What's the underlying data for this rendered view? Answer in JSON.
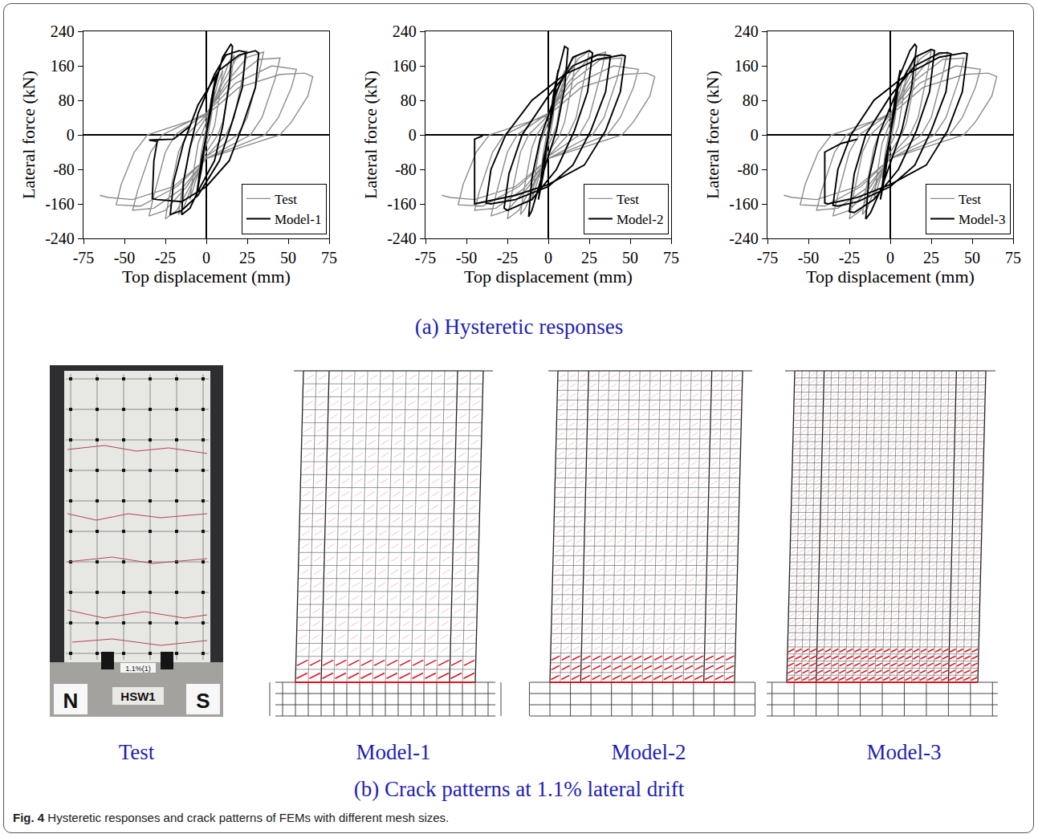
{
  "chart_data": [
    {
      "type": "line",
      "xlabel": "Top displacement (mm)",
      "ylabel": "Lateral force (kN)",
      "xlim": [
        -75,
        75
      ],
      "ylim": [
        -240,
        240
      ],
      "xticks": [
        -75,
        -50,
        -25,
        0,
        25,
        50,
        75
      ],
      "yticks": [
        -240,
        -160,
        -80,
        0,
        80,
        160,
        240
      ],
      "grid": false,
      "legend": "bottom right",
      "series": [
        {
          "name": "Test",
          "color": "#8c8c8c",
          "x": [
            0,
            2,
            5,
            3,
            1,
            -2,
            -5,
            -3,
            -1,
            3,
            7,
            10,
            8,
            5,
            3,
            -2,
            -6,
            -10,
            -8,
            -5,
            -3,
            0,
            8,
            14,
            17,
            15,
            10,
            7,
            0,
            -8,
            -14,
            -17,
            -15,
            -10,
            -7,
            0,
            10,
            18,
            25,
            23,
            17,
            12,
            0,
            -10,
            -18,
            -25,
            -23,
            -17,
            -12,
            0,
            12,
            25,
            35,
            32,
            25,
            19,
            0,
            -12,
            -25,
            -35,
            -32,
            -25,
            -19,
            0,
            15,
            32,
            45,
            42,
            34,
            27,
            0,
            -15,
            -32,
            -45,
            -42,
            -34,
            -27,
            0,
            18,
            40,
            55,
            52,
            44,
            36,
            0,
            -18,
            -40,
            -55,
            -52,
            -44,
            -36,
            0,
            20,
            45,
            60,
            65,
            62,
            52,
            45,
            0,
            -20,
            -45,
            -60,
            -65
          ],
          "values": [
            0,
            50,
            100,
            40,
            0,
            -50,
            -100,
            -40,
            0,
            60,
            120,
            150,
            90,
            20,
            0,
            -40,
            -100,
            -150,
            -90,
            -20,
            0,
            30,
            110,
            170,
            185,
            130,
            30,
            0,
            -40,
            -110,
            -170,
            -185,
            -130,
            -30,
            0,
            40,
            120,
            175,
            195,
            150,
            40,
            0,
            -50,
            -120,
            -175,
            -195,
            -150,
            -40,
            0,
            45,
            120,
            180,
            192,
            140,
            40,
            0,
            -50,
            -120,
            -175,
            -188,
            -140,
            -40,
            0,
            50,
            125,
            175,
            178,
            130,
            40,
            0,
            -55,
            -125,
            -170,
            -175,
            -130,
            -40,
            0,
            50,
            120,
            160,
            152,
            110,
            40,
            0,
            -55,
            -120,
            -165,
            -162,
            -115,
            -40,
            0,
            45,
            110,
            140,
            143,
            135,
            90,
            30,
            0,
            -55,
            -120,
            -150,
            -145,
            -140
          ]
        },
        {
          "name": "Model-1",
          "color": "#000000",
          "x": [
            0,
            3,
            6,
            3,
            0,
            -3,
            -6,
            -3,
            0,
            5,
            10,
            15,
            16,
            14,
            10,
            5,
            -5,
            -10,
            -15,
            -14,
            -10,
            -5,
            5,
            12,
            20,
            24,
            22,
            15,
            8,
            -5,
            -15,
            -22,
            -20,
            -14,
            -5,
            8,
            20,
            30,
            32,
            30,
            22,
            14,
            0,
            -15,
            -30,
            -33,
            -32,
            -30,
            -35,
            -20,
            -10
          ],
          "values": [
            0,
            80,
            140,
            60,
            0,
            -80,
            -140,
            -60,
            0,
            110,
            180,
            210,
            205,
            120,
            20,
            -60,
            -130,
            -170,
            -185,
            -110,
            -30,
            50,
            140,
            185,
            195,
            192,
            110,
            20,
            -60,
            -140,
            -175,
            -185,
            -110,
            -20,
            70,
            150,
            185,
            195,
            190,
            110,
            20,
            -60,
            -120,
            -155,
            -150,
            -148,
            -60,
            -15,
            -12,
            -10,
            20
          ]
        }
      ]
    },
    {
      "type": "line",
      "xlabel": "Top displacement (mm)",
      "ylabel": "Lateral force (kN)",
      "xlim": [
        -75,
        75
      ],
      "ylim": [
        -240,
        240
      ],
      "xticks": [
        -75,
        -50,
        -25,
        0,
        25,
        50,
        75
      ],
      "yticks": [
        -240,
        -160,
        -80,
        0,
        80,
        160,
        240
      ],
      "grid": false,
      "legend": "bottom right",
      "series": [
        {
          "name": "Test",
          "color": "#8c8c8c",
          "x": [
            0,
            2,
            5,
            3,
            1,
            -2,
            -5,
            -3,
            -1,
            3,
            7,
            10,
            8,
            5,
            3,
            -2,
            -6,
            -10,
            -8,
            -5,
            -3,
            0,
            8,
            14,
            17,
            15,
            10,
            7,
            0,
            -8,
            -14,
            -17,
            -15,
            -10,
            -7,
            0,
            10,
            18,
            25,
            23,
            17,
            12,
            0,
            -10,
            -18,
            -25,
            -23,
            -17,
            -12,
            0,
            12,
            25,
            35,
            32,
            25,
            19,
            0,
            -12,
            -25,
            -35,
            -32,
            -25,
            -19,
            0,
            15,
            32,
            45,
            42,
            34,
            27,
            0,
            -15,
            -32,
            -45,
            -42,
            -34,
            -27,
            0,
            18,
            40,
            55,
            52,
            44,
            36,
            0,
            -18,
            -40,
            -55,
            -52,
            -44,
            -36,
            0,
            20,
            45,
            60,
            65,
            62,
            52,
            45,
            0,
            -20,
            -45,
            -60,
            -65
          ],
          "values": [
            0,
            50,
            100,
            40,
            0,
            -50,
            -100,
            -40,
            0,
            60,
            120,
            150,
            90,
            20,
            0,
            -40,
            -100,
            -150,
            -90,
            -20,
            0,
            30,
            110,
            170,
            185,
            130,
            30,
            0,
            -40,
            -110,
            -170,
            -185,
            -130,
            -30,
            0,
            40,
            120,
            175,
            195,
            150,
            40,
            0,
            -50,
            -120,
            -175,
            -195,
            -150,
            -40,
            0,
            45,
            120,
            180,
            192,
            140,
            40,
            0,
            -50,
            -120,
            -175,
            -188,
            -140,
            -40,
            0,
            50,
            125,
            175,
            178,
            130,
            40,
            0,
            -55,
            -125,
            -170,
            -175,
            -130,
            -40,
            0,
            50,
            120,
            160,
            152,
            110,
            40,
            0,
            -55,
            -120,
            -165,
            -162,
            -115,
            -40,
            0,
            45,
            110,
            140,
            143,
            135,
            90,
            30,
            0,
            -55,
            -120,
            -150,
            -145,
            -140
          ]
        },
        {
          "name": "Model-2",
          "color": "#000000",
          "x": [
            0,
            3,
            6,
            3,
            0,
            -3,
            -6,
            -3,
            0,
            5,
            10,
            12,
            10,
            5,
            -5,
            -10,
            -12,
            -10,
            -5,
            5,
            15,
            25,
            27,
            24,
            16,
            5,
            -10,
            -25,
            -27,
            -24,
            -16,
            0,
            15,
            30,
            35,
            38,
            35,
            26,
            15,
            0,
            -20,
            -35,
            -38,
            -35,
            -26,
            -10,
            10,
            30,
            45,
            47,
            44,
            35,
            22,
            0,
            -20,
            -40,
            -45,
            -45,
            -40
          ],
          "values": [
            0,
            90,
            150,
            60,
            0,
            -90,
            -150,
            -60,
            0,
            130,
            205,
            200,
            110,
            10,
            -110,
            -175,
            -190,
            -100,
            -10,
            100,
            180,
            195,
            190,
            100,
            10,
            -80,
            -150,
            -175,
            -170,
            -90,
            0,
            90,
            160,
            185,
            185,
            183,
            100,
            10,
            -70,
            -120,
            -150,
            -160,
            -158,
            -80,
            0,
            80,
            140,
            175,
            185,
            183,
            100,
            10,
            -70,
            -115,
            -140,
            -155,
            -160,
            -10,
            -2
          ]
        }
      ]
    },
    {
      "type": "line",
      "xlabel": "Top displacement (mm)",
      "ylabel": "Lateral force (kN)",
      "xlim": [
        -75,
        75
      ],
      "ylim": [
        -240,
        240
      ],
      "xticks": [
        -75,
        -50,
        -25,
        0,
        25,
        50,
        75
      ],
      "yticks": [
        -240,
        -160,
        -80,
        0,
        80,
        160,
        240
      ],
      "grid": false,
      "legend": "bottom right",
      "series": [
        {
          "name": "Test",
          "color": "#8c8c8c",
          "x": [
            0,
            2,
            5,
            3,
            1,
            -2,
            -5,
            -3,
            -1,
            3,
            7,
            10,
            8,
            5,
            3,
            -2,
            -6,
            -10,
            -8,
            -5,
            -3,
            0,
            8,
            14,
            17,
            15,
            10,
            7,
            0,
            -8,
            -14,
            -17,
            -15,
            -10,
            -7,
            0,
            10,
            18,
            25,
            23,
            17,
            12,
            0,
            -10,
            -18,
            -25,
            -23,
            -17,
            -12,
            0,
            12,
            25,
            35,
            32,
            25,
            19,
            0,
            -12,
            -25,
            -35,
            -32,
            -25,
            -19,
            0,
            15,
            32,
            45,
            42,
            34,
            27,
            0,
            -15,
            -32,
            -45,
            -42,
            -34,
            -27,
            0,
            18,
            40,
            55,
            52,
            44,
            36,
            0,
            -18,
            -40,
            -55,
            -52,
            -44,
            -36,
            0,
            20,
            45,
            60,
            65,
            62,
            52,
            45,
            0,
            -20,
            -45,
            -60,
            -65
          ],
          "values": [
            0,
            50,
            100,
            40,
            0,
            -50,
            -100,
            -40,
            0,
            60,
            120,
            150,
            90,
            20,
            0,
            -40,
            -100,
            -150,
            -90,
            -20,
            0,
            30,
            110,
            170,
            185,
            130,
            30,
            0,
            -40,
            -110,
            -170,
            -185,
            -130,
            -30,
            0,
            40,
            120,
            175,
            195,
            150,
            40,
            0,
            -50,
            -120,
            -175,
            -195,
            -150,
            -40,
            0,
            45,
            120,
            180,
            192,
            140,
            40,
            0,
            -50,
            -120,
            -175,
            -188,
            -140,
            -40,
            0,
            50,
            125,
            175,
            178,
            130,
            40,
            0,
            -55,
            -125,
            -170,
            -175,
            -130,
            -40,
            0,
            50,
            120,
            160,
            152,
            110,
            40,
            0,
            -55,
            -120,
            -165,
            -162,
            -115,
            -40,
            0,
            45,
            110,
            140,
            143,
            135,
            90,
            30,
            0,
            -55,
            -120,
            -150,
            -145,
            -140
          ]
        },
        {
          "name": "Model-3",
          "color": "#000000",
          "x": [
            0,
            3,
            6,
            3,
            0,
            -3,
            -6,
            -3,
            0,
            5,
            12,
            15,
            16,
            13,
            7,
            -5,
            -12,
            -15,
            -13,
            -7,
            5,
            15,
            25,
            27,
            24,
            16,
            5,
            -10,
            -22,
            -25,
            -22,
            -15,
            0,
            15,
            30,
            35,
            37,
            34,
            25,
            15,
            0,
            -20,
            -32,
            -35,
            -32,
            -24,
            -10,
            10,
            30,
            45,
            47,
            44,
            35,
            22,
            0,
            -20,
            -38,
            -40,
            -40,
            -30,
            -20
          ],
          "values": [
            0,
            90,
            150,
            60,
            0,
            -90,
            -150,
            -60,
            0,
            130,
            195,
            210,
            205,
            110,
            10,
            -120,
            -180,
            -195,
            -100,
            0,
            110,
            180,
            198,
            195,
            100,
            10,
            -80,
            -150,
            -180,
            -178,
            -90,
            0,
            90,
            160,
            190,
            190,
            188,
            100,
            10,
            -70,
            -120,
            -155,
            -165,
            -163,
            -80,
            0,
            80,
            140,
            180,
            190,
            188,
            100,
            10,
            -70,
            -115,
            -145,
            -160,
            -158,
            -40,
            -20,
            -10
          ]
        }
      ]
    }
  ],
  "captions": {
    "a": "(a) Hysteretic responses",
    "b": "(b) Crack patterns at 1.1% lateral drift"
  },
  "figure_caption": {
    "label": "Fig. 4",
    "text": "Hysteretic responses and crack patterns of FEMs with different mesh sizes."
  },
  "panels": [
    {
      "label": "Test",
      "signs": [
        "N",
        "HSW1",
        "S"
      ],
      "tag": "1.1%(1)"
    },
    {
      "label": "Model-1"
    },
    {
      "label": "Model-2"
    },
    {
      "label": "Model-3"
    }
  ]
}
